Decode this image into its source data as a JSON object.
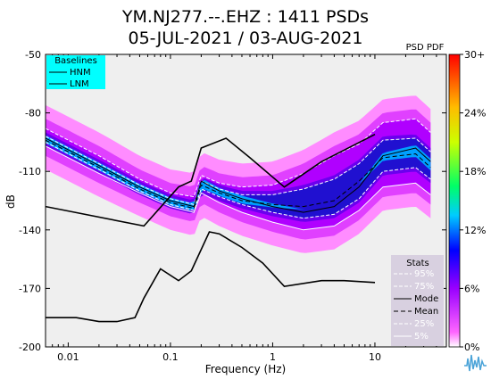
{
  "header": {
    "title_line1": "YM.NJ277.--.EHZ : 1411 PSDs",
    "title_line2": "05-JUL-2021 / 03-AUG-2021"
  },
  "colorbar": {
    "title": "PSD PDF",
    "tick_labels": [
      "30+",
      "24%",
      "18%",
      "12%",
      "6%",
      "0%"
    ]
  },
  "baselines_legend": {
    "title": "Baselines",
    "items": [
      "HNM",
      "LNM"
    ]
  },
  "stats_legend": {
    "title": "Stats",
    "items": [
      "95%",
      "75%",
      "Mode",
      "Mean",
      "25%",
      "5%"
    ]
  },
  "colors": {
    "baselines_bg": "#00ffff",
    "stats_bg": "#d8d0e0",
    "plot_bg": "#efefef"
  },
  "chart_data": {
    "type": "line",
    "title": "YM.NJ277.--.EHZ : 1411 PSDs",
    "subtitle": "05-JUL-2021 / 03-AUG-2021",
    "xlabel": "Frequency (Hz)",
    "ylabel": "dB",
    "xscale": "log",
    "xlim": [
      0.006,
      50
    ],
    "ylim": [
      -200,
      -50
    ],
    "x_ticks": [
      "0.01",
      "0.1",
      "1",
      "10"
    ],
    "y_ticks": [
      "-50",
      "-80",
      "-110",
      "-140",
      "-170",
      "-200"
    ],
    "series": [
      {
        "name": "HNM",
        "x": [
          0.006,
          0.055,
          0.12,
          0.16,
          0.2,
          0.35,
          0.6,
          1.3,
          3,
          10
        ],
        "y": [
          -128,
          -138,
          -118,
          -115,
          -98,
          -93,
          -103,
          -118,
          -105,
          -91
        ]
      },
      {
        "name": "LNM",
        "x": [
          0.006,
          0.012,
          0.02,
          0.03,
          0.045,
          0.055,
          0.08,
          0.12,
          0.16,
          0.24,
          0.3,
          0.5,
          0.8,
          1.3,
          3,
          5,
          10
        ],
        "y": [
          -185,
          -185,
          -187,
          -187,
          -185,
          -175,
          -160,
          -166,
          -161,
          -141,
          -142,
          -149,
          -157,
          -169,
          -166,
          -166,
          -167
        ]
      },
      {
        "name": "Mode",
        "x": [
          0.006,
          0.02,
          0.05,
          0.1,
          0.17,
          0.2,
          0.3,
          0.5,
          1,
          2,
          4,
          7,
          12,
          25,
          35
        ],
        "y": [
          -93,
          -107,
          -118,
          -125,
          -128,
          -115,
          -120,
          -124,
          -128,
          -131,
          -128,
          -118,
          -102,
          -98,
          -105
        ]
      },
      {
        "name": "Mean",
        "x": [
          0.006,
          0.02,
          0.05,
          0.1,
          0.17,
          0.2,
          0.3,
          0.5,
          1,
          2,
          4,
          7,
          12,
          25,
          35
        ],
        "y": [
          -94,
          -108,
          -119,
          -126,
          -129,
          -117,
          -121,
          -125,
          -127,
          -128,
          -125,
          -115,
          -103,
          -101,
          -108
        ]
      },
      {
        "name": "95%",
        "x": [
          0.006,
          0.02,
          0.05,
          0.1,
          0.17,
          0.2,
          0.3,
          0.5,
          1,
          2,
          4,
          7,
          12,
          25,
          35
        ],
        "y": [
          -88,
          -102,
          -114,
          -121,
          -123,
          -112,
          -116,
          -118,
          -117,
          -111,
          -102,
          -96,
          -85,
          -83,
          -90
        ]
      },
      {
        "name": "75%",
        "x": [
          0.006,
          0.02,
          0.05,
          0.1,
          0.17,
          0.2,
          0.3,
          0.5,
          1,
          2,
          4,
          7,
          12,
          25,
          35
        ],
        "y": [
          -92,
          -106,
          -117,
          -124,
          -127,
          -115,
          -119,
          -122,
          -122,
          -119,
          -114,
          -106,
          -94,
          -93,
          -100
        ]
      },
      {
        "name": "25%",
        "x": [
          0.006,
          0.02,
          0.05,
          0.1,
          0.17,
          0.2,
          0.3,
          0.5,
          1,
          2,
          4,
          7,
          12,
          25,
          35
        ],
        "y": [
          -95,
          -109,
          -120,
          -127,
          -130,
          -119,
          -123,
          -127,
          -131,
          -134,
          -132,
          -124,
          -110,
          -108,
          -114
        ]
      },
      {
        "name": "5%",
        "x": [
          0.006,
          0.02,
          0.05,
          0.1,
          0.17,
          0.2,
          0.3,
          0.5,
          1,
          2,
          4,
          7,
          12,
          25,
          35
        ],
        "y": [
          -97,
          -111,
          -121,
          -128,
          -131,
          -121,
          -126,
          -131,
          -136,
          -140,
          -138,
          -130,
          -118,
          -116,
          -122
        ]
      }
    ]
  }
}
